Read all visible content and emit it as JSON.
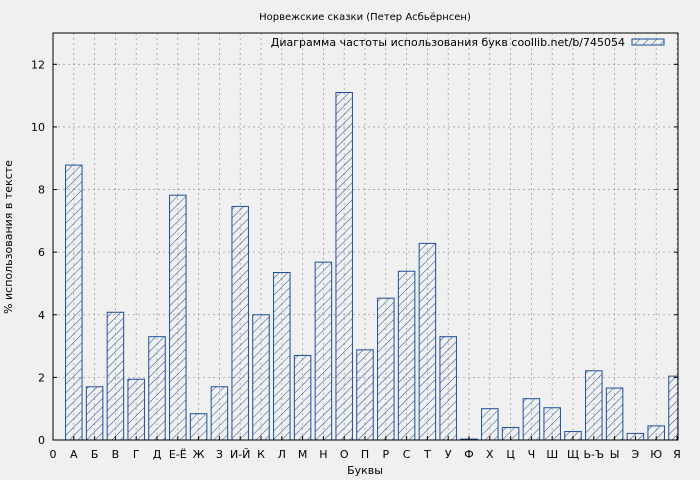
{
  "chart_data": {
    "type": "bar",
    "title": "Норвежские сказки (Петер Асбьёрнсен)",
    "xlabel": "Буквы",
    "ylabel": "% использования в тексте",
    "ylim": [
      0,
      13
    ],
    "yticks": [
      0,
      2,
      4,
      6,
      8,
      10,
      12
    ],
    "x_tick_labels": [
      "0",
      "А",
      "Б",
      "В",
      "Г",
      "Д",
      "Е-Ё",
      "Ж",
      "З",
      "И-Й",
      "К",
      "Л",
      "М",
      "Н",
      "О",
      "П",
      "Р",
      "С",
      "Т",
      "У",
      "Ф",
      "Х",
      "Ц",
      "Ч",
      "Ш",
      "Щ",
      "Ь-Ъ",
      "Ы",
      "Э",
      "Ю",
      "Я"
    ],
    "categories": [
      "А",
      "Б",
      "В",
      "Г",
      "Д",
      "Е-Ё",
      "Ж",
      "З",
      "И-Й",
      "К",
      "Л",
      "М",
      "Н",
      "О",
      "П",
      "Р",
      "С",
      "Т",
      "У",
      "Ф",
      "Х",
      "Ц",
      "Ч",
      "Ш",
      "Щ",
      "Ь-Ъ",
      "Ы",
      "Э",
      "Ю",
      "Я"
    ],
    "series": [
      {
        "name": "Диаграмма частоты использования букв coollib.net/b/745054",
        "values": [
          8.78,
          1.7,
          4.08,
          1.94,
          3.3,
          7.82,
          0.84,
          1.7,
          7.46,
          4.0,
          5.35,
          2.7,
          5.68,
          11.1,
          2.88,
          4.53,
          5.39,
          6.28,
          3.3,
          0.03,
          1.0,
          0.4,
          1.32,
          1.03,
          0.27,
          2.21,
          1.66,
          0.21,
          0.45,
          2.04
        ]
      }
    ],
    "grid": true,
    "legend": "top-right",
    "colors": {
      "bar": "#1f4e9a",
      "background": "#f0f0f0",
      "grid": "#a0a0a0"
    }
  }
}
